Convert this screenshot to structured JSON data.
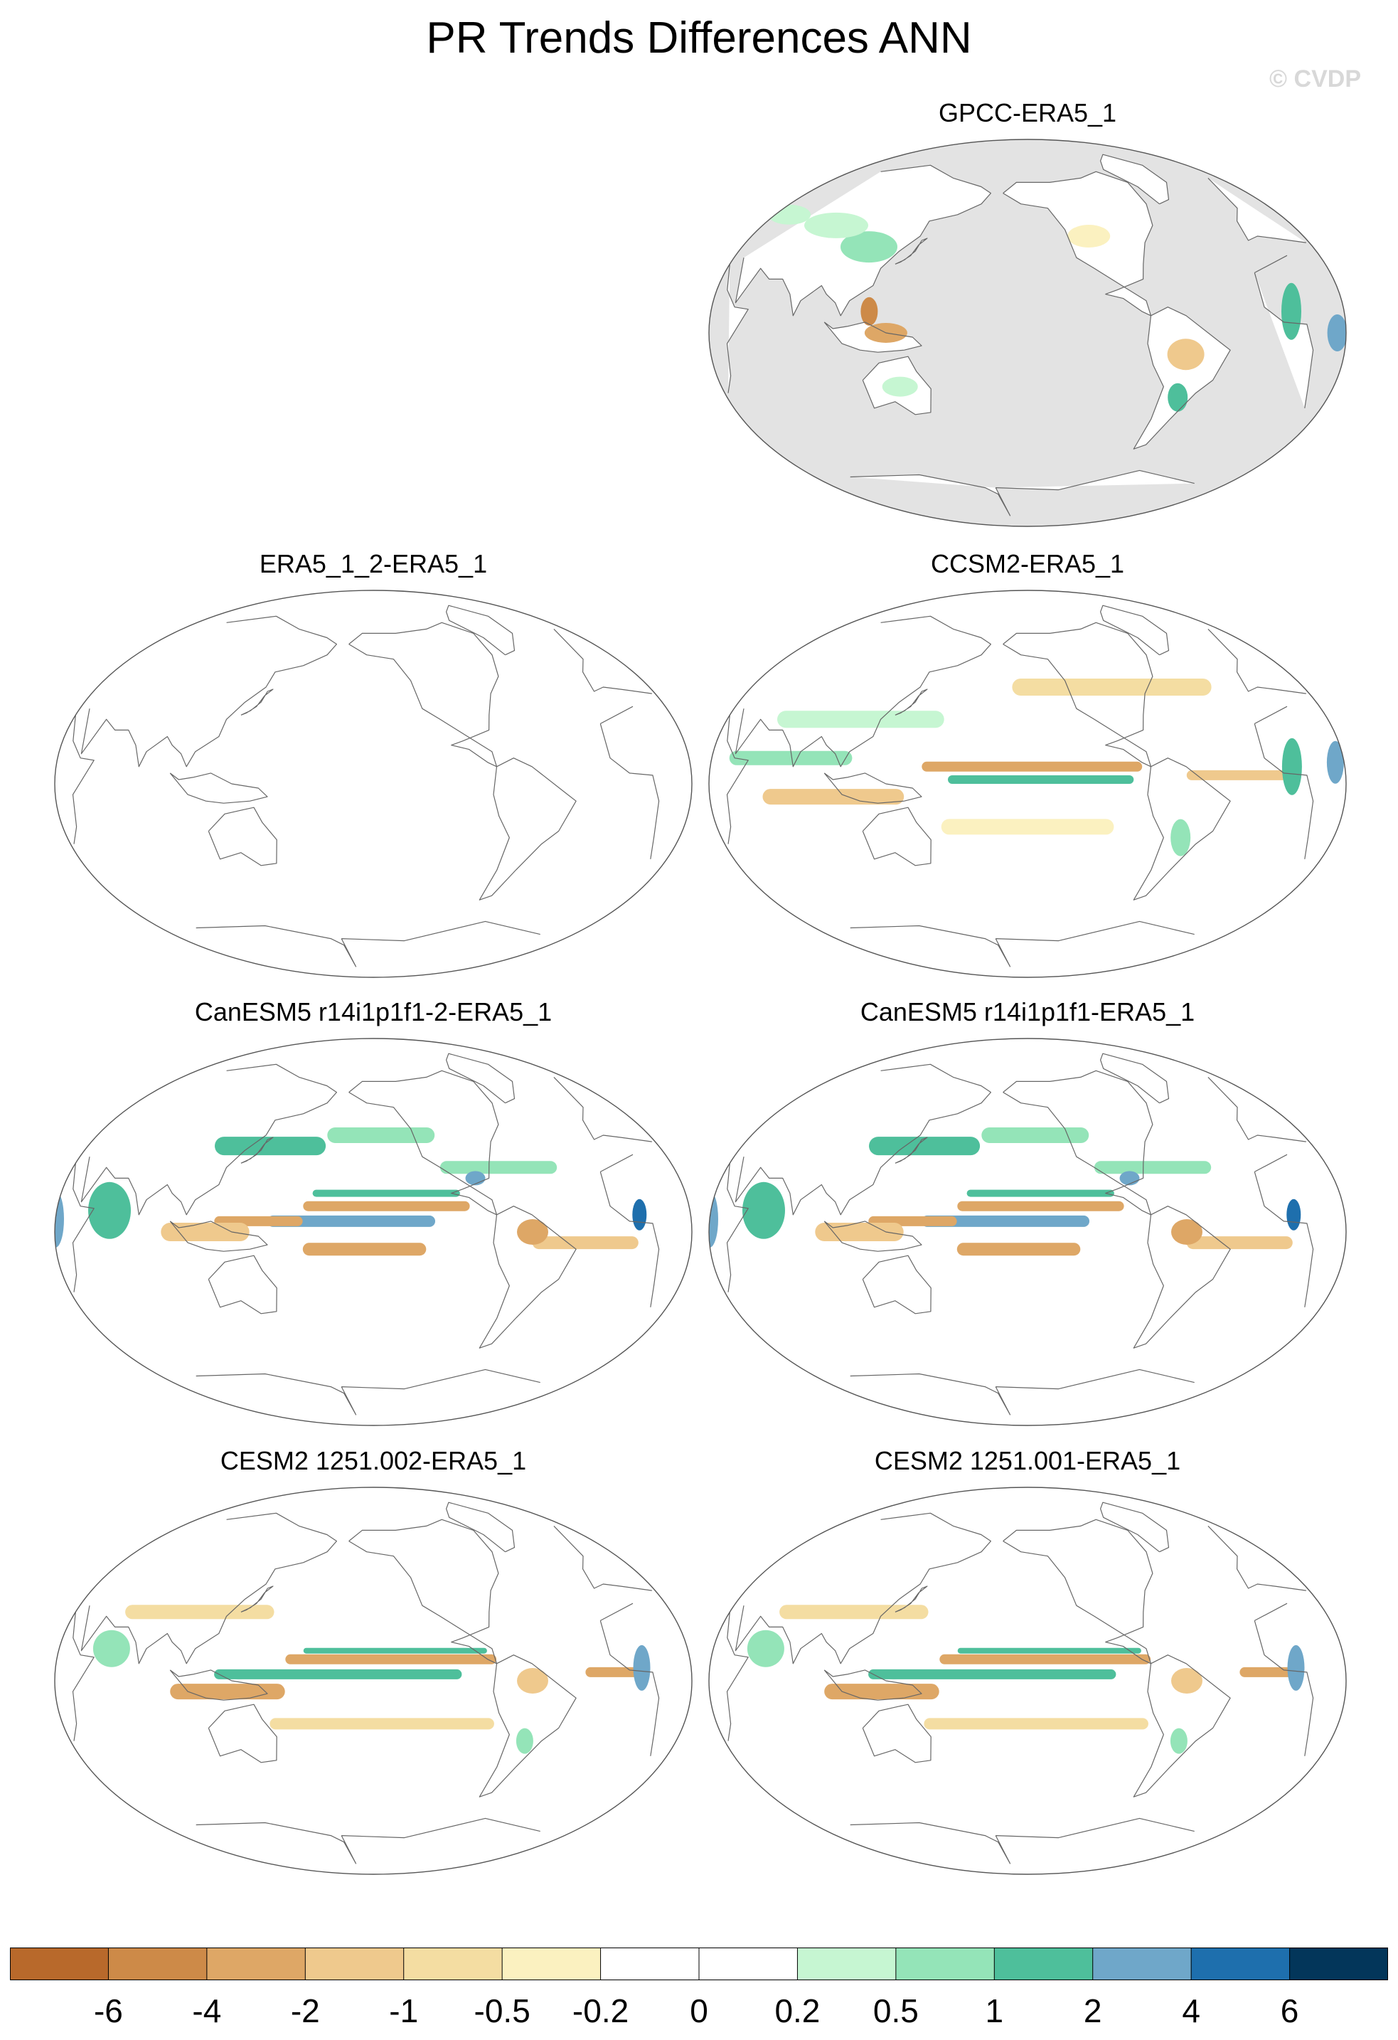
{
  "title": "PR Trends Differences ANN",
  "watermark": "© CVDP",
  "panels": [
    {
      "name": "panel-gpcc",
      "title": "GPCC-ERA5_1",
      "style": "gpcc"
    },
    {
      "name": "panel-era5-1-2",
      "title": "ERA5_1_2-ERA5_1",
      "style": "blank"
    },
    {
      "name": "panel-ccsm2",
      "title": "CCSM2-ERA5_1",
      "style": "ccsm"
    },
    {
      "name": "panel-canesm5-2",
      "title": "CanESM5 r14i1p1f1-2-ERA5_1",
      "style": "canesm"
    },
    {
      "name": "panel-canesm5",
      "title": "CanESM5 r14i1p1f1-ERA5_1",
      "style": "canesm"
    },
    {
      "name": "panel-cesm2-002",
      "title": "CESM2 1251.002-ERA5_1",
      "style": "cesm"
    },
    {
      "name": "panel-cesm2-001",
      "title": "CESM2 1251.001-ERA5_1",
      "style": "cesm"
    }
  ],
  "colorbar": {
    "labels": [
      "-6",
      "-4",
      "-2",
      "-1",
      "-0.5",
      "-0.2",
      "0",
      "0.2",
      "0.5",
      "1",
      "2",
      "4",
      "6"
    ],
    "colors": [
      "#b8692b",
      "#cd8a48",
      "#dea766",
      "#efc98d",
      "#f4dda2",
      "#fbf1c0",
      "#ffffff",
      "#ffffff",
      "#c6f6d2",
      "#94e4b8",
      "#4ebf9b",
      "#6fa7c9",
      "#1e6fad",
      "#03365a"
    ]
  },
  "colors": {
    "land_mask": "#e3e3e3",
    "coast": "#666666",
    "ocean": "#ffffff"
  }
}
